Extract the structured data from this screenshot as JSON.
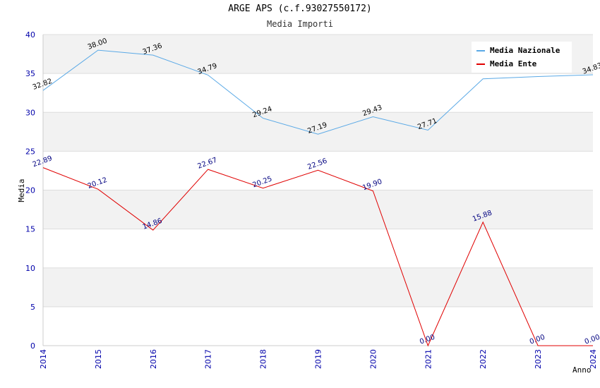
{
  "chart_data": {
    "type": "line",
    "title": "ARGE APS (c.f.93027550172)",
    "subtitle": "Media Importi",
    "xlabel": "Anno",
    "ylabel": "Media",
    "x": [
      "2014",
      "2015",
      "2016",
      "2017",
      "2018",
      "2019",
      "2020",
      "2021",
      "2022",
      "2023",
      "2024"
    ],
    "ylim": [
      0,
      40
    ],
    "yticks": [
      0,
      5,
      10,
      15,
      20,
      25,
      30,
      35,
      40
    ],
    "grid": true,
    "legend_position": "top-right",
    "series": [
      {
        "name": "Media Nazionale",
        "color": "#5aa9e6",
        "values": [
          32.82,
          38.0,
          37.36,
          34.79,
          29.24,
          27.19,
          29.43,
          27.71,
          34.3,
          34.6,
          34.83
        ],
        "labels": [
          "32.82",
          "38.00",
          "37.36",
          "34.79",
          "29.24",
          "27.19",
          "29.43",
          "27.71",
          "",
          "",
          "34.83"
        ]
      },
      {
        "name": "Media Ente",
        "color": "#e00000",
        "values": [
          22.89,
          20.12,
          14.86,
          22.67,
          20.25,
          22.56,
          19.9,
          0.0,
          15.88,
          0.0,
          0.0
        ],
        "labels": [
          "22.89",
          "20.12",
          "14.86",
          "22.67",
          "20.25",
          "22.56",
          "19.90",
          "0.00",
          "15.88",
          "0.00",
          "0.00"
        ]
      }
    ]
  }
}
